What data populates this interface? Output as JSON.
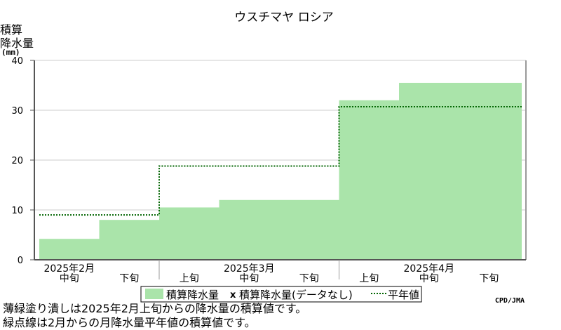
{
  "chart_data": {
    "type": "area",
    "title": "ウスチマヤ ロシア",
    "ylabel_line1": "積算",
    "ylabel_line2": "降水量",
    "yunit": "(mm)",
    "ylim": [
      0,
      40
    ],
    "yticks": [
      "0",
      "10",
      "20",
      "30",
      "40"
    ],
    "grid": true,
    "periods": [
      {
        "sub": "中旬",
        "month": "2025年2月"
      },
      {
        "sub": "下旬",
        "month": ""
      },
      {
        "sub": "上旬",
        "month": ""
      },
      {
        "sub": "中旬",
        "month": "2025年3月"
      },
      {
        "sub": "下旬",
        "month": ""
      },
      {
        "sub": "上旬",
        "month": ""
      },
      {
        "sub": "中旬",
        "month": "2025年4月"
      },
      {
        "sub": "下旬",
        "month": ""
      }
    ],
    "series": [
      {
        "name": "積算降水量",
        "type": "step-area",
        "color": "#aae4aa",
        "values": [
          4.2,
          8.0,
          10.5,
          12.0,
          12.0,
          32.0,
          35.5,
          35.5
        ]
      },
      {
        "name": "平年値",
        "type": "step-line",
        "color": "#006400",
        "values": [
          9.0,
          9.0,
          18.8,
          18.8,
          18.8,
          30.7,
          30.7,
          30.7
        ]
      }
    ],
    "missing_marker": "x",
    "missing_legend": "積算降水量(データなし)",
    "legend_position": "bottom-center",
    "credit": "CPD/JMA"
  },
  "notes": [
    "薄緑塗り潰しは2025年2月上旬からの降水量の積算値です。",
    "緑点線は2月からの月降水量平年値の積算値です。"
  ]
}
